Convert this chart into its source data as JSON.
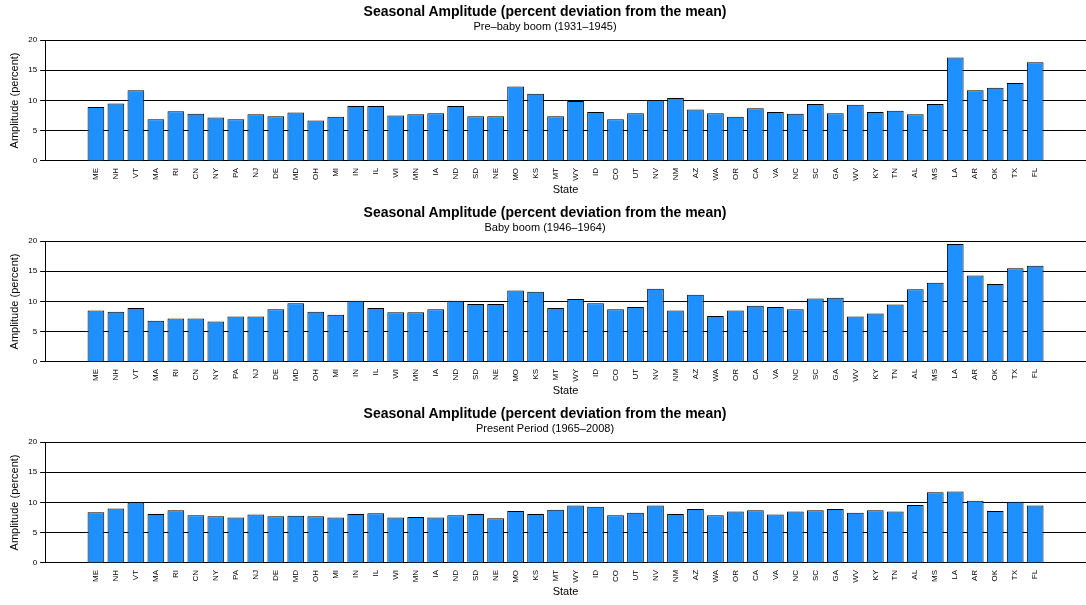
{
  "chart_data": [
    {
      "type": "bar",
      "title": "Seasonal Amplitude (percent deviation from the mean)",
      "subtitle": "Pre–baby boom (1931–1945)",
      "xlabel": "State",
      "ylabel": "Amplitude (percent)",
      "categories": [
        "ME",
        "NH",
        "VT",
        "MA",
        "RI",
        "CN",
        "NY",
        "PA",
        "NJ",
        "DE",
        "MD",
        "OH",
        "MI",
        "IN",
        "IL",
        "WI",
        "MN",
        "IA",
        "ND",
        "SD",
        "NE",
        "MO",
        "KS",
        "MT",
        "WY",
        "ID",
        "CO",
        "UT",
        "NV",
        "NM",
        "AZ",
        "WA",
        "OR",
        "CA",
        "VA",
        "NC",
        "SC",
        "GA",
        "WV",
        "KY",
        "TN",
        "AL",
        "MS",
        "LA",
        "AR",
        "OK",
        "TX",
        "FL"
      ],
      "values": [
        8.9,
        9.5,
        11.7,
        6.9,
        8.2,
        7.8,
        7.2,
        6.9,
        7.7,
        7.4,
        8.0,
        6.7,
        7.3,
        9.1,
        9.1,
        7.5,
        7.7,
        7.9,
        9.1,
        7.4,
        7.4,
        12.3,
        11.1,
        7.4,
        9.9,
        8.1,
        6.9,
        7.9,
        10.0,
        10.4,
        8.5,
        7.9,
        7.3,
        8.7,
        8.1,
        7.8,
        9.4,
        7.9,
        9.3,
        8.1,
        8.3,
        7.7,
        9.4,
        17.1,
        11.7,
        12.1,
        12.9,
        16.3
      ],
      "color": "#1e90ff",
      "ylim": [
        0,
        20
      ],
      "yticks": [
        0,
        5,
        10,
        15,
        20
      ],
      "grid": "y"
    },
    {
      "type": "bar",
      "title": "Seasonal Amplitude (percent deviation from the mean)",
      "subtitle": "Baby boom (1946–1964)",
      "xlabel": "State",
      "ylabel": "Amplitude (percent)",
      "categories": [
        "ME",
        "NH",
        "VT",
        "MA",
        "RI",
        "CN",
        "NY",
        "PA",
        "NJ",
        "DE",
        "MD",
        "OH",
        "MI",
        "IN",
        "IL",
        "WI",
        "MN",
        "IA",
        "ND",
        "SD",
        "NE",
        "MO",
        "KS",
        "MT",
        "WY",
        "ID",
        "CO",
        "UT",
        "NV",
        "NM",
        "AZ",
        "WA",
        "OR",
        "CA",
        "VA",
        "NC",
        "SC",
        "GA",
        "WV",
        "KY",
        "TN",
        "AL",
        "MS",
        "LA",
        "AR",
        "OK",
        "TX",
        "FL"
      ],
      "values": [
        8.5,
        8.3,
        8.9,
        6.8,
        7.2,
        7.2,
        6.7,
        7.5,
        7.5,
        8.7,
        9.7,
        8.3,
        7.8,
        10.1,
        8.9,
        8.2,
        8.2,
        8.7,
        10.1,
        9.6,
        9.6,
        11.8,
        11.6,
        8.9,
        10.4,
        9.7,
        8.7,
        9.1,
        12.1,
        8.5,
        11.1,
        7.6,
        8.5,
        9.3,
        9.1,
        8.7,
        10.5,
        10.6,
        7.5,
        8.0,
        9.5,
        12.0,
        13.1,
        19.5,
        14.3,
        12.9,
        15.5,
        15.9
      ],
      "color": "#1e90ff",
      "ylim": [
        0,
        20
      ],
      "yticks": [
        0,
        5,
        10,
        15,
        20
      ],
      "grid": "y"
    },
    {
      "type": "bar",
      "title": "Seasonal Amplitude (percent deviation from the mean)",
      "subtitle": "Present Period (1965–2008)",
      "xlabel": "State",
      "ylabel": "Amplitude (percent)",
      "categories": [
        "ME",
        "NH",
        "VT",
        "MA",
        "RI",
        "CN",
        "NY",
        "PA",
        "NJ",
        "DE",
        "MD",
        "OH",
        "MI",
        "IN",
        "IL",
        "WI",
        "MN",
        "IA",
        "ND",
        "SD",
        "NE",
        "MO",
        "KS",
        "MT",
        "WY",
        "ID",
        "CO",
        "UT",
        "NV",
        "NM",
        "AZ",
        "WA",
        "OR",
        "CA",
        "VA",
        "NC",
        "SC",
        "GA",
        "WV",
        "KY",
        "TN",
        "AL",
        "MS",
        "LA",
        "AR",
        "OK",
        "TX",
        "FL"
      ],
      "values": [
        8.4,
        9.0,
        10.0,
        8.1,
        8.7,
        7.9,
        7.7,
        7.5,
        8.0,
        7.7,
        7.8,
        7.7,
        7.5,
        8.1,
        8.2,
        7.5,
        7.6,
        7.5,
        7.9,
        8.1,
        7.4,
        8.6,
        8.1,
        8.8,
        9.5,
        9.3,
        7.9,
        8.3,
        9.5,
        8.1,
        8.9,
        7.9,
        8.5,
        8.7,
        8.0,
        8.5,
        8.7,
        8.9,
        8.3,
        8.7,
        8.5,
        9.6,
        11.7,
        11.8,
        10.3,
        8.6,
        10.1,
        9.5
      ],
      "color": "#1e90ff",
      "ylim": [
        0,
        20
      ],
      "yticks": [
        0,
        5,
        10,
        15,
        20
      ],
      "grid": "y"
    }
  ]
}
